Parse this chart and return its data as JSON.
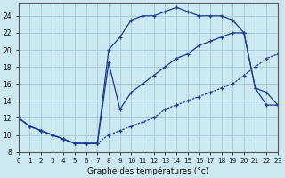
{
  "xlabel": "Graphe des températures (°c)",
  "background_color": "#cce8f0",
  "grid_color": "#a8ccda",
  "line_color": "#1a3a9a",
  "xlim": [
    0,
    23
  ],
  "ylim": [
    8,
    25.5
  ],
  "xticks": [
    0,
    1,
    2,
    3,
    4,
    5,
    6,
    7,
    8,
    9,
    10,
    11,
    12,
    13,
    14,
    15,
    16,
    17,
    18,
    19,
    20,
    21,
    22,
    23
  ],
  "yticks": [
    8,
    10,
    12,
    14,
    16,
    18,
    20,
    22,
    24
  ],
  "curve_a_x": [
    0,
    1,
    2,
    3,
    4,
    5,
    6,
    7,
    8,
    9,
    10,
    11,
    12,
    13,
    14,
    15,
    16,
    17,
    18,
    19,
    20,
    21,
    22,
    23
  ],
  "curve_a_y": [
    12,
    11,
    10.5,
    10,
    9.5,
    9,
    9,
    9,
    20,
    21.5,
    23.5,
    24,
    24,
    24.5,
    25,
    24.5,
    24,
    24,
    24,
    23.5,
    22,
    15.5,
    13.5,
    13.5
  ],
  "curve_b_x": [
    0,
    1,
    2,
    3,
    4,
    5,
    6,
    7,
    8,
    9,
    10,
    11,
    12,
    13,
    14,
    15,
    16,
    17,
    18,
    19,
    20,
    21,
    22,
    23
  ],
  "curve_b_y": [
    12,
    11,
    10.5,
    10,
    9.5,
    9,
    9,
    9,
    10,
    10.5,
    11,
    11.5,
    12,
    13,
    13.5,
    14,
    14.5,
    15,
    15.5,
    16,
    17,
    18,
    19,
    19.5
  ],
  "curve_c_x": [
    0,
    1,
    2,
    3,
    4,
    5,
    6,
    7,
    8,
    9,
    10,
    11,
    12,
    13,
    14,
    15,
    16,
    17,
    18,
    19,
    20,
    21,
    22,
    23
  ],
  "curve_c_y": [
    12,
    11,
    10.5,
    10,
    9.5,
    9,
    9,
    9,
    18.5,
    13,
    15,
    16,
    17,
    18,
    19,
    19.5,
    20.5,
    21,
    21.5,
    22,
    22,
    15.5,
    15,
    13.5
  ]
}
